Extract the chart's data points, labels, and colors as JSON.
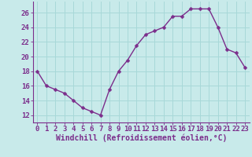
{
  "x": [
    0,
    1,
    2,
    3,
    4,
    5,
    6,
    7,
    8,
    9,
    10,
    11,
    12,
    13,
    14,
    15,
    16,
    17,
    18,
    19,
    20,
    21,
    22,
    23
  ],
  "y": [
    18,
    16,
    15.5,
    15,
    14,
    13,
    12.5,
    12,
    15.5,
    18,
    19.5,
    21.5,
    23,
    23.5,
    24,
    25.5,
    25.5,
    26.5,
    26.5,
    26.5,
    24,
    21,
    20.5,
    18.5
  ],
  "line_color": "#7b2d8b",
  "marker_color": "#7b2d8b",
  "bg_color": "#c8eaea",
  "grid_color": "#a8d8d8",
  "xlabel": "Windchill (Refroidissement éolien,°C)",
  "ylim": [
    11,
    27.5
  ],
  "xlim": [
    -0.5,
    23.5
  ],
  "yticks": [
    12,
    14,
    16,
    18,
    20,
    22,
    24,
    26
  ],
  "xticks": [
    0,
    1,
    2,
    3,
    4,
    5,
    6,
    7,
    8,
    9,
    10,
    11,
    12,
    13,
    14,
    15,
    16,
    17,
    18,
    19,
    20,
    21,
    22,
    23
  ],
  "font_color": "#7b2d8b",
  "marker_size": 2.5,
  "line_width": 1.0,
  "tick_fontsize": 6.5,
  "xlabel_fontsize": 7.0
}
